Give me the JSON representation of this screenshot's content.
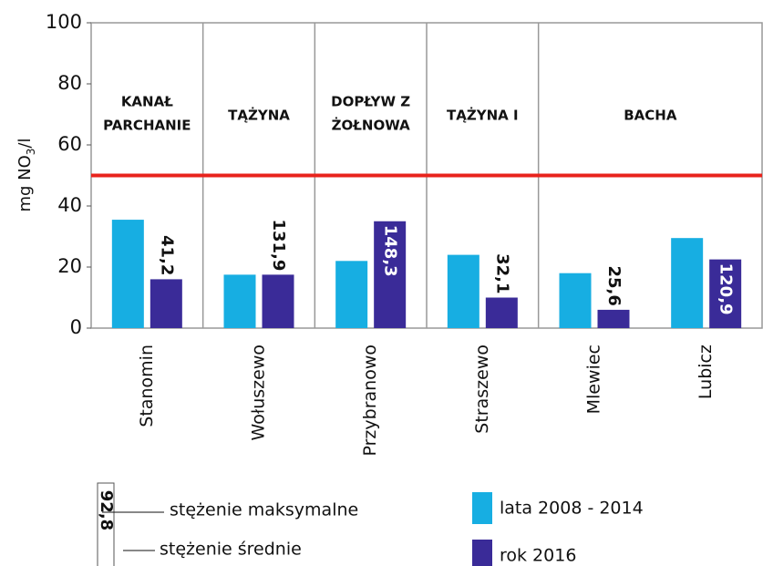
{
  "chart_data": {
    "type": "bar",
    "y_label": [
      "mg NO",
      "3",
      "/l"
    ],
    "categories": [
      "Stanomin",
      "Wołuszewo",
      "Przybranowo",
      "Straszewo",
      "Mlewiec",
      "Lubicz"
    ],
    "series": [
      {
        "name": "lata 2008 - 2014",
        "color": "#17aee2",
        "values": [
          35.5,
          17.5,
          22,
          24,
          18,
          29.5
        ]
      },
      {
        "name": "rok 2016",
        "color": "#3a2b98",
        "values": [
          16,
          17.5,
          35,
          10,
          6,
          22.5
        ]
      }
    ],
    "max_labels": [
      "41,2",
      "131,9",
      "148,3",
      "32,1",
      "25,6",
      "120,9"
    ],
    "groups": [
      {
        "lines": [
          "KANAŁ",
          "PARCHANIE"
        ],
        "span": 1
      },
      {
        "lines": [
          "TĄŻYNA"
        ],
        "span": 1
      },
      {
        "lines": [
          "DOPŁYW Z",
          "ŻOŁNOWA"
        ],
        "span": 1
      },
      {
        "lines": [
          "TĄŻYNA I"
        ],
        "span": 1
      },
      {
        "lines": [
          "BACHA"
        ],
        "span": 2
      }
    ],
    "limit": 50,
    "limit_color": "#e8231c",
    "ylim": [
      0,
      100
    ],
    "yticks": [
      0,
      20,
      40,
      60,
      80,
      100
    ],
    "legend_key": {
      "sample_label": "92,8",
      "max_text": "stężenie maksymalne",
      "mean_text": "stężenie średnie"
    }
  }
}
